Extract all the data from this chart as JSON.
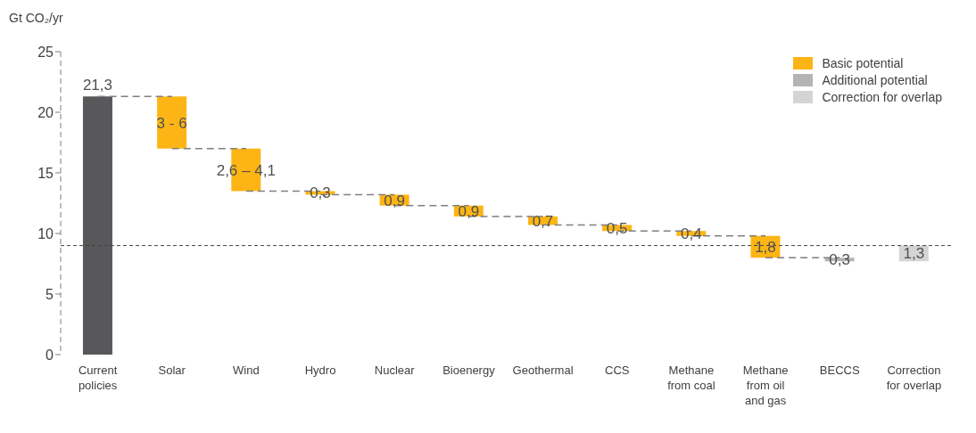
{
  "chart_data": {
    "type": "bar",
    "ylabel": "Gt CO₂/yr",
    "categories": [
      "Current policies",
      "Solar",
      "Wind",
      "Hydro",
      "Nuclear",
      "Bioenergy",
      "Geothermal",
      "CCS",
      "Methane from coal",
      "Methane from oil and gas",
      "BECCS",
      "Correction for overlap"
    ],
    "series": [
      {
        "color": "#58585a",
        "values": [
          21.3,
          null,
          null,
          null,
          null,
          null,
          null,
          null,
          null,
          null,
          null,
          null
        ],
        "base": [
          0,
          null,
          null,
          null,
          null,
          null,
          null,
          null,
          null,
          null,
          null,
          null
        ]
      },
      {
        "name": "Basic potential",
        "color": "#fdb515",
        "values": [
          null,
          4.3,
          3.5,
          0.3,
          0.9,
          0.9,
          0.7,
          0.5,
          0.4,
          1.8,
          null,
          null
        ],
        "base": [
          null,
          17.0,
          13.5,
          13.2,
          12.3,
          11.4,
          10.7,
          10.2,
          9.8,
          8.0,
          null,
          null
        ]
      },
      {
        "name": "Additional potential",
        "color": "#b4b4b4",
        "values": [
          null,
          null,
          null,
          null,
          null,
          null,
          null,
          null,
          null,
          null,
          0.3,
          null
        ],
        "base": [
          null,
          null,
          null,
          null,
          null,
          null,
          null,
          null,
          null,
          null,
          7.7,
          null
        ]
      },
      {
        "name": "Correction for overlap",
        "color": "#d4d4d6",
        "values": [
          null,
          null,
          null,
          null,
          null,
          null,
          null,
          null,
          null,
          null,
          null,
          1.3
        ],
        "base": [
          null,
          null,
          null,
          null,
          null,
          null,
          null,
          null,
          null,
          null,
          null,
          7.7
        ]
      }
    ],
    "value_labels": [
      "21,3",
      "3 - 6",
      "2,6 – 4,1",
      "0,3",
      "0,9",
      "0,9",
      "0,7",
      "0,5",
      "0,4",
      "1,8",
      "0,3",
      "1,3"
    ],
    "ylim": [
      0,
      25
    ],
    "yticks": [
      0,
      5,
      10,
      15,
      20,
      25
    ],
    "ref_lines": [
      {
        "axis": "y",
        "value": 9,
        "color": "#404040",
        "line_style": "dashed"
      }
    ],
    "legend": "top right",
    "grid": false
  }
}
